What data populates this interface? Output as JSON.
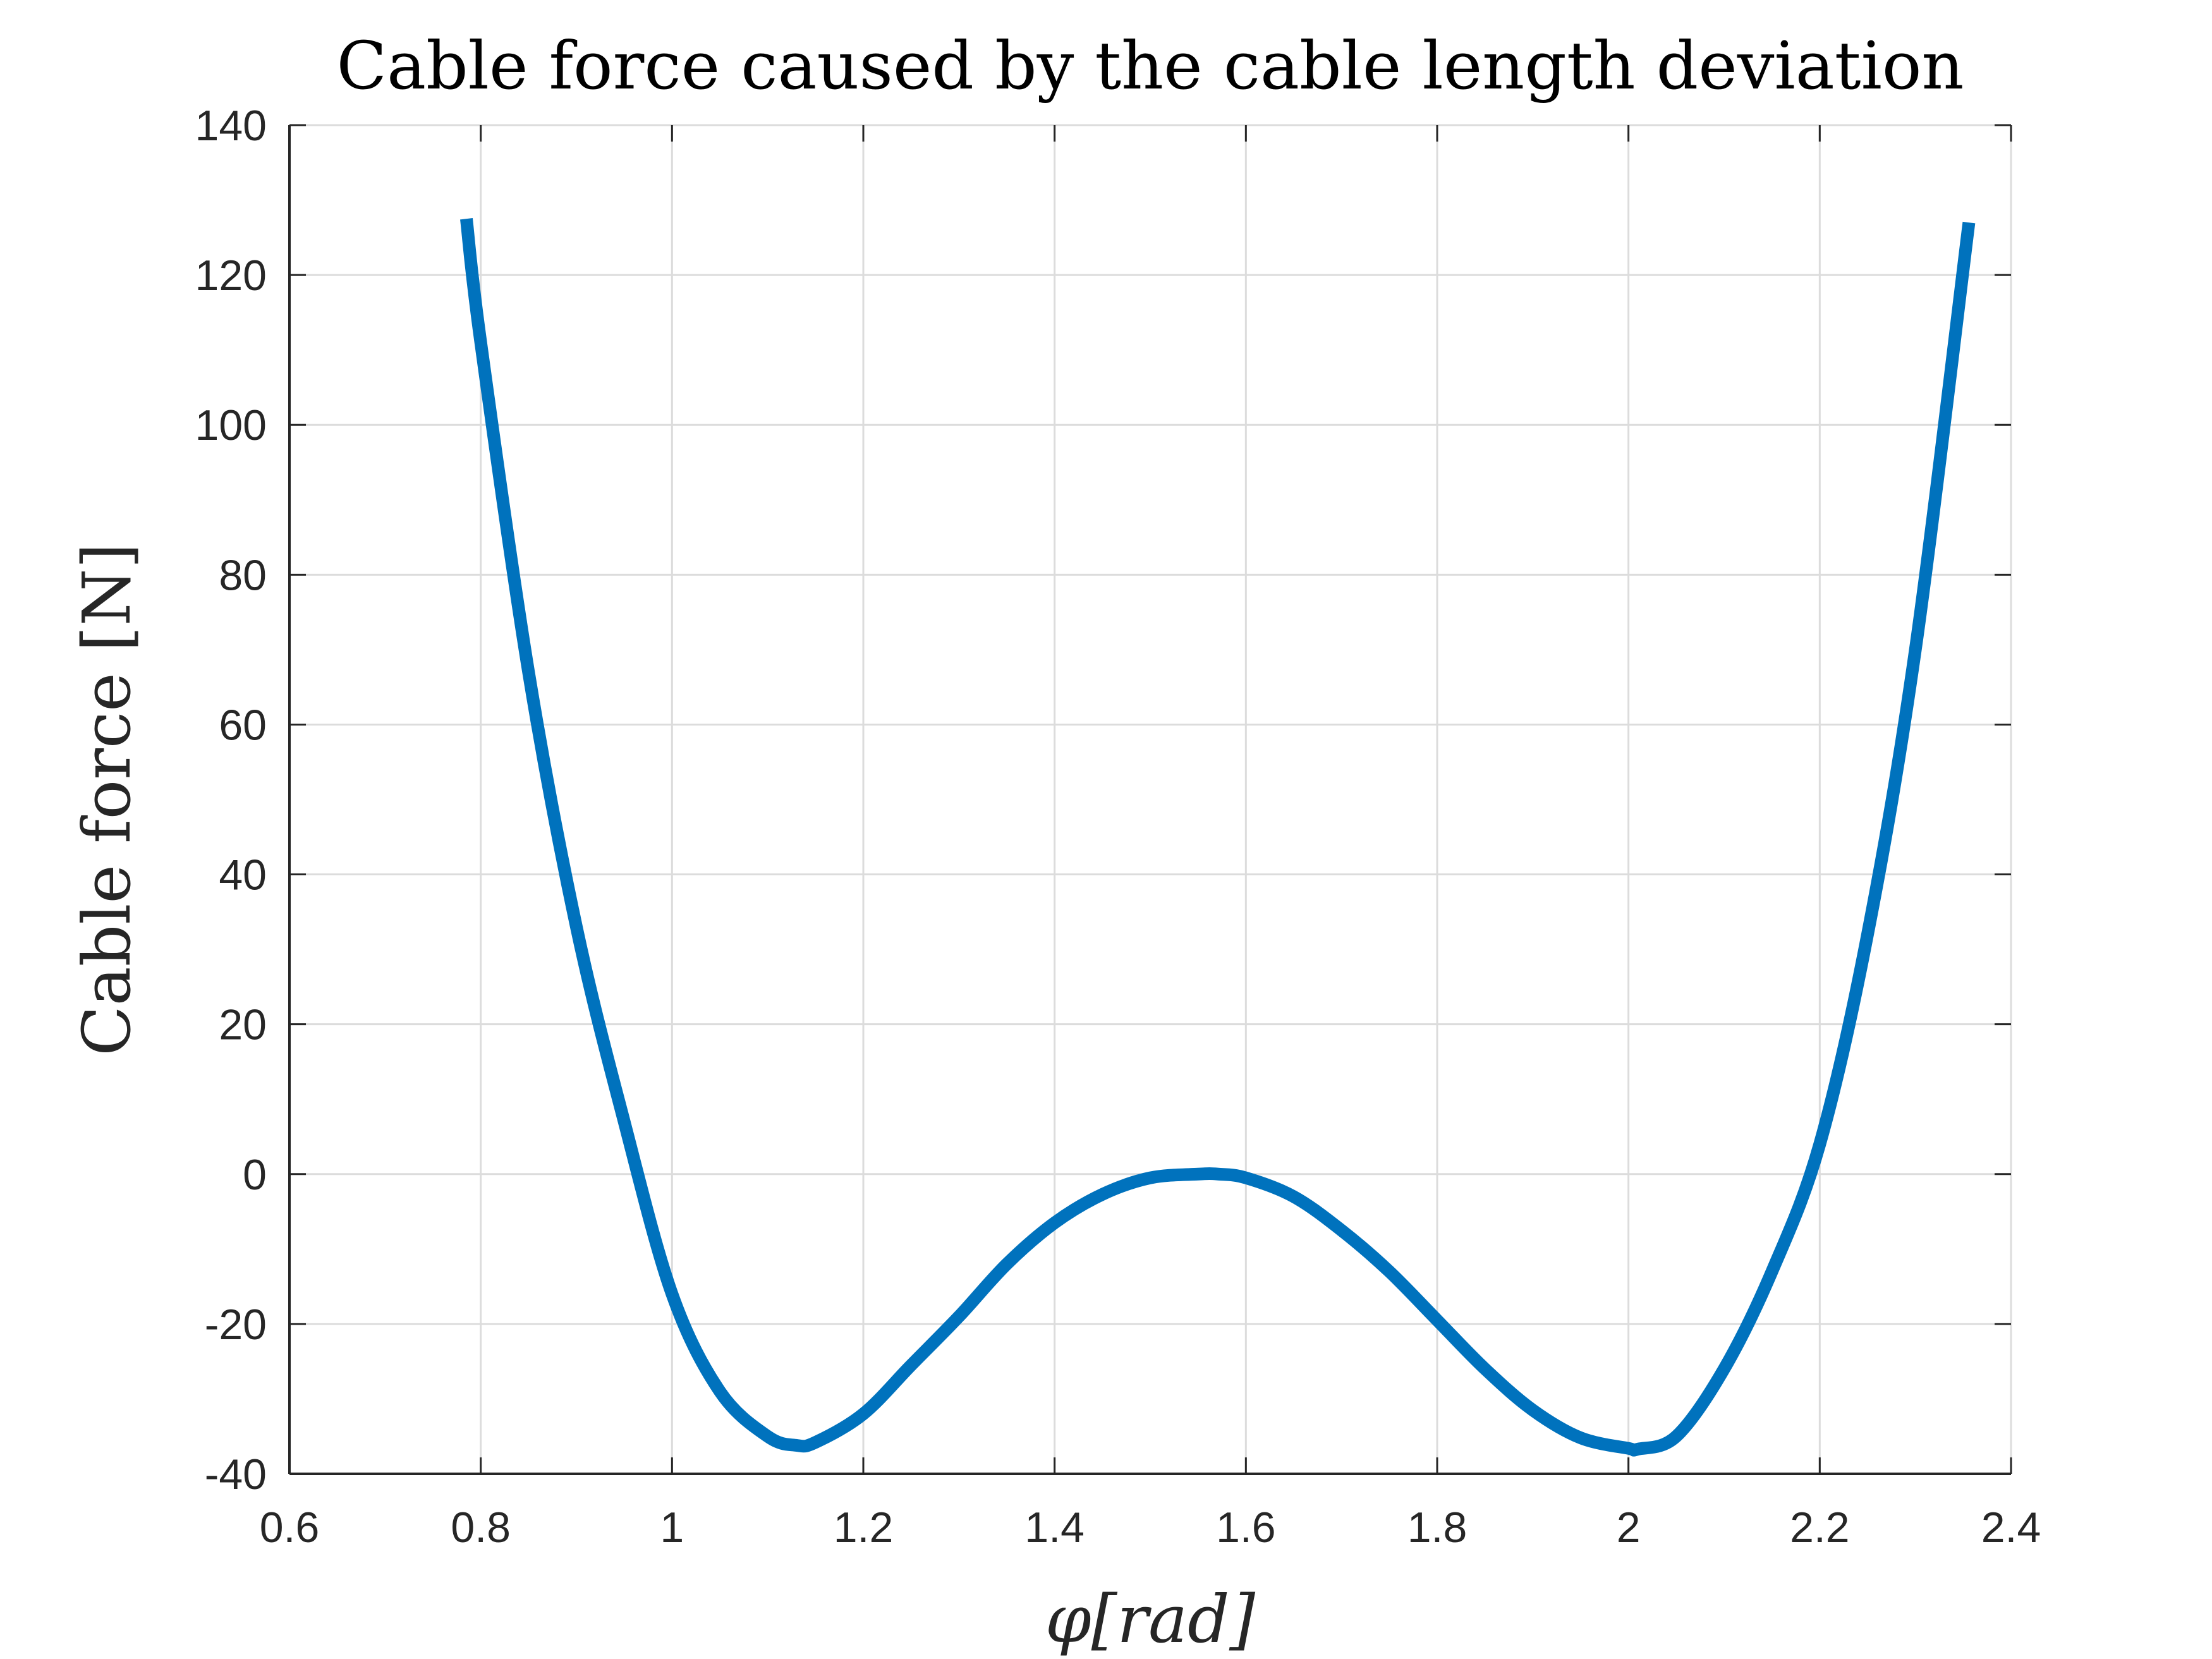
{
  "chart_data": {
    "type": "line",
    "title": "Cable force caused by the cable length deviation",
    "xlabel": "φ[rad]",
    "ylabel": "Cable force [N]",
    "xlim": [
      0.6,
      2.4
    ],
    "ylim": [
      -40,
      140
    ],
    "xticks": [
      "0.6",
      "0.8",
      "1",
      "1.2",
      "1.4",
      "1.6",
      "1.8",
      "2",
      "2.2",
      "2.4"
    ],
    "yticks": [
      "-40",
      "-20",
      "0",
      "20",
      "40",
      "60",
      "80",
      "100",
      "120",
      "140"
    ],
    "grid": true,
    "series": [
      {
        "color": "#0072BD",
        "x": [
          0.785,
          0.8,
          0.85,
          0.9,
          0.95,
          1.0,
          1.05,
          1.1,
          1.13,
          1.15,
          1.2,
          1.25,
          1.3,
          1.35,
          1.4,
          1.45,
          1.5,
          1.55,
          1.571,
          1.6,
          1.65,
          1.7,
          1.75,
          1.8,
          1.85,
          1.9,
          1.95,
          2.0,
          2.01,
          2.05,
          2.1,
          2.15,
          2.2,
          2.25,
          2.3,
          2.356
        ],
        "y": [
          127.5,
          111,
          67,
          33,
          7,
          -16,
          -29,
          -35,
          -36.2,
          -35.8,
          -32,
          -25.5,
          -19,
          -12,
          -6.5,
          -2.7,
          -0.5,
          0,
          0,
          -0.5,
          -3,
          -7.5,
          -13,
          -19.5,
          -26,
          -31.5,
          -35.2,
          -36.6,
          -36.7,
          -35,
          -26,
          -13,
          4,
          32,
          70,
          127
        ]
      }
    ]
  }
}
